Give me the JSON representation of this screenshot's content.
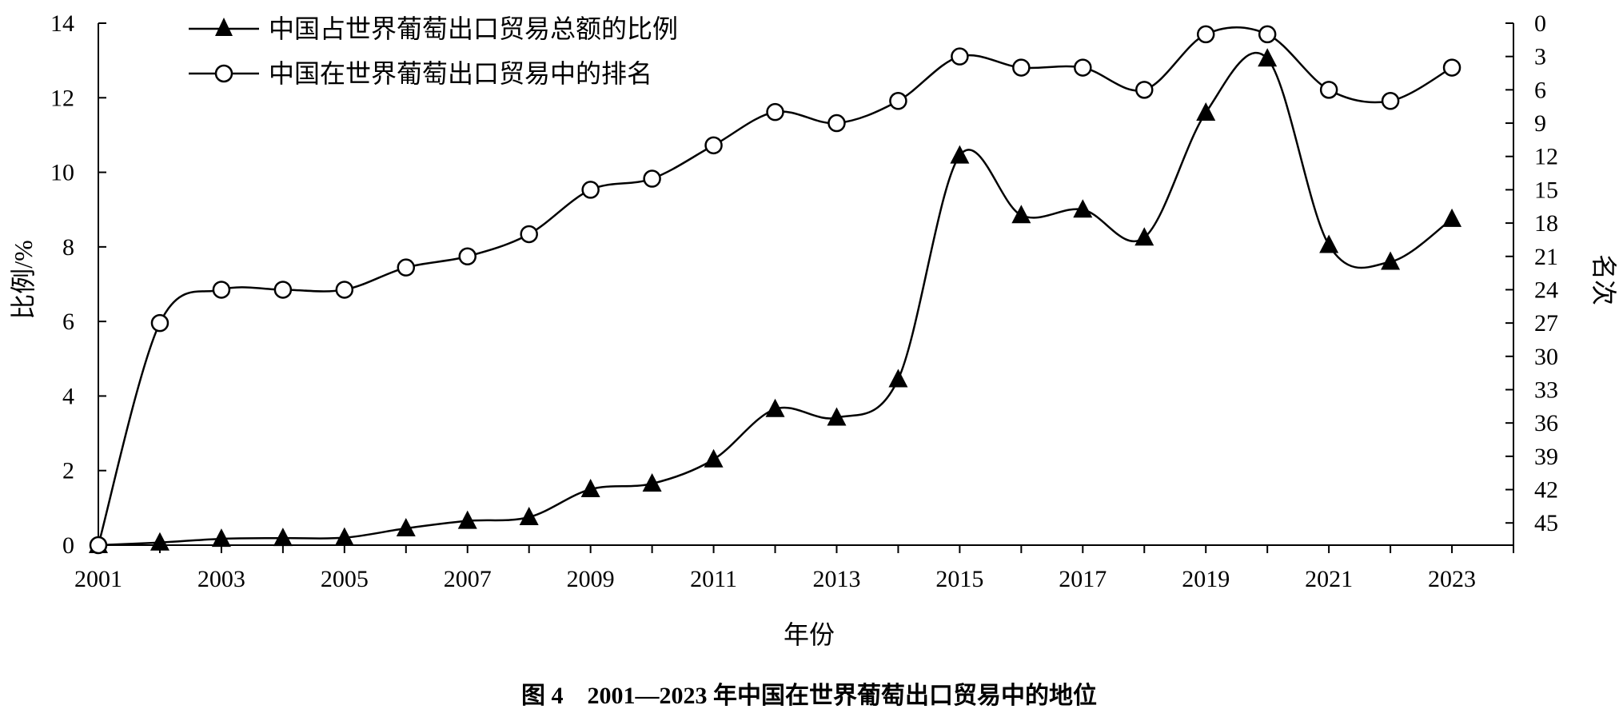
{
  "chart_data": {
    "type": "line",
    "caption": "图 4　2001—2023 年中国在世界葡萄出口贸易中的地位",
    "xlabel": "年份",
    "ylabel_left": "比例/%",
    "ylabel_right": "名次",
    "x": [
      2001,
      2002,
      2003,
      2004,
      2005,
      2006,
      2007,
      2008,
      2009,
      2010,
      2011,
      2012,
      2013,
      2014,
      2015,
      2016,
      2017,
      2018,
      2019,
      2020,
      2021,
      2022,
      2023
    ],
    "x_tick_labels": [
      "2001",
      "2003",
      "2005",
      "2007",
      "2009",
      "2011",
      "2013",
      "2015",
      "2017",
      "2019",
      "2021",
      "2023"
    ],
    "left_axis": {
      "ylim": [
        0,
        14
      ],
      "ticks": [
        "0",
        "2",
        "4",
        "6",
        "8",
        "10",
        "12",
        "14"
      ]
    },
    "right_axis": {
      "ylim": [
        0,
        47
      ],
      "inverted": true,
      "ticks": [
        "0",
        "3",
        "6",
        "9",
        "12",
        "15",
        "18",
        "21",
        "24",
        "27",
        "30",
        "33",
        "36",
        "39",
        "42",
        "45"
      ]
    },
    "series": [
      {
        "name": "中国占世界葡萄出口贸易总额的比例",
        "marker": "filled-triangle",
        "axis": "left",
        "values": [
          0.0,
          0.07,
          0.17,
          0.19,
          0.2,
          0.45,
          0.65,
          0.75,
          1.5,
          1.65,
          2.3,
          3.65,
          3.42,
          4.45,
          10.45,
          8.85,
          9.0,
          8.25,
          11.6,
          13.05,
          8.05,
          7.6,
          8.75
        ]
      },
      {
        "name": "中国在世界葡萄出口贸易中的排名",
        "marker": "open-circle",
        "axis": "right",
        "values": [
          47,
          27,
          24,
          24,
          24,
          22,
          21,
          19,
          15,
          14,
          11,
          8,
          9,
          7,
          3,
          4,
          4,
          6,
          1,
          1,
          6,
          7,
          4
        ]
      }
    ],
    "legend_position": "top-left",
    "grid": false
  }
}
